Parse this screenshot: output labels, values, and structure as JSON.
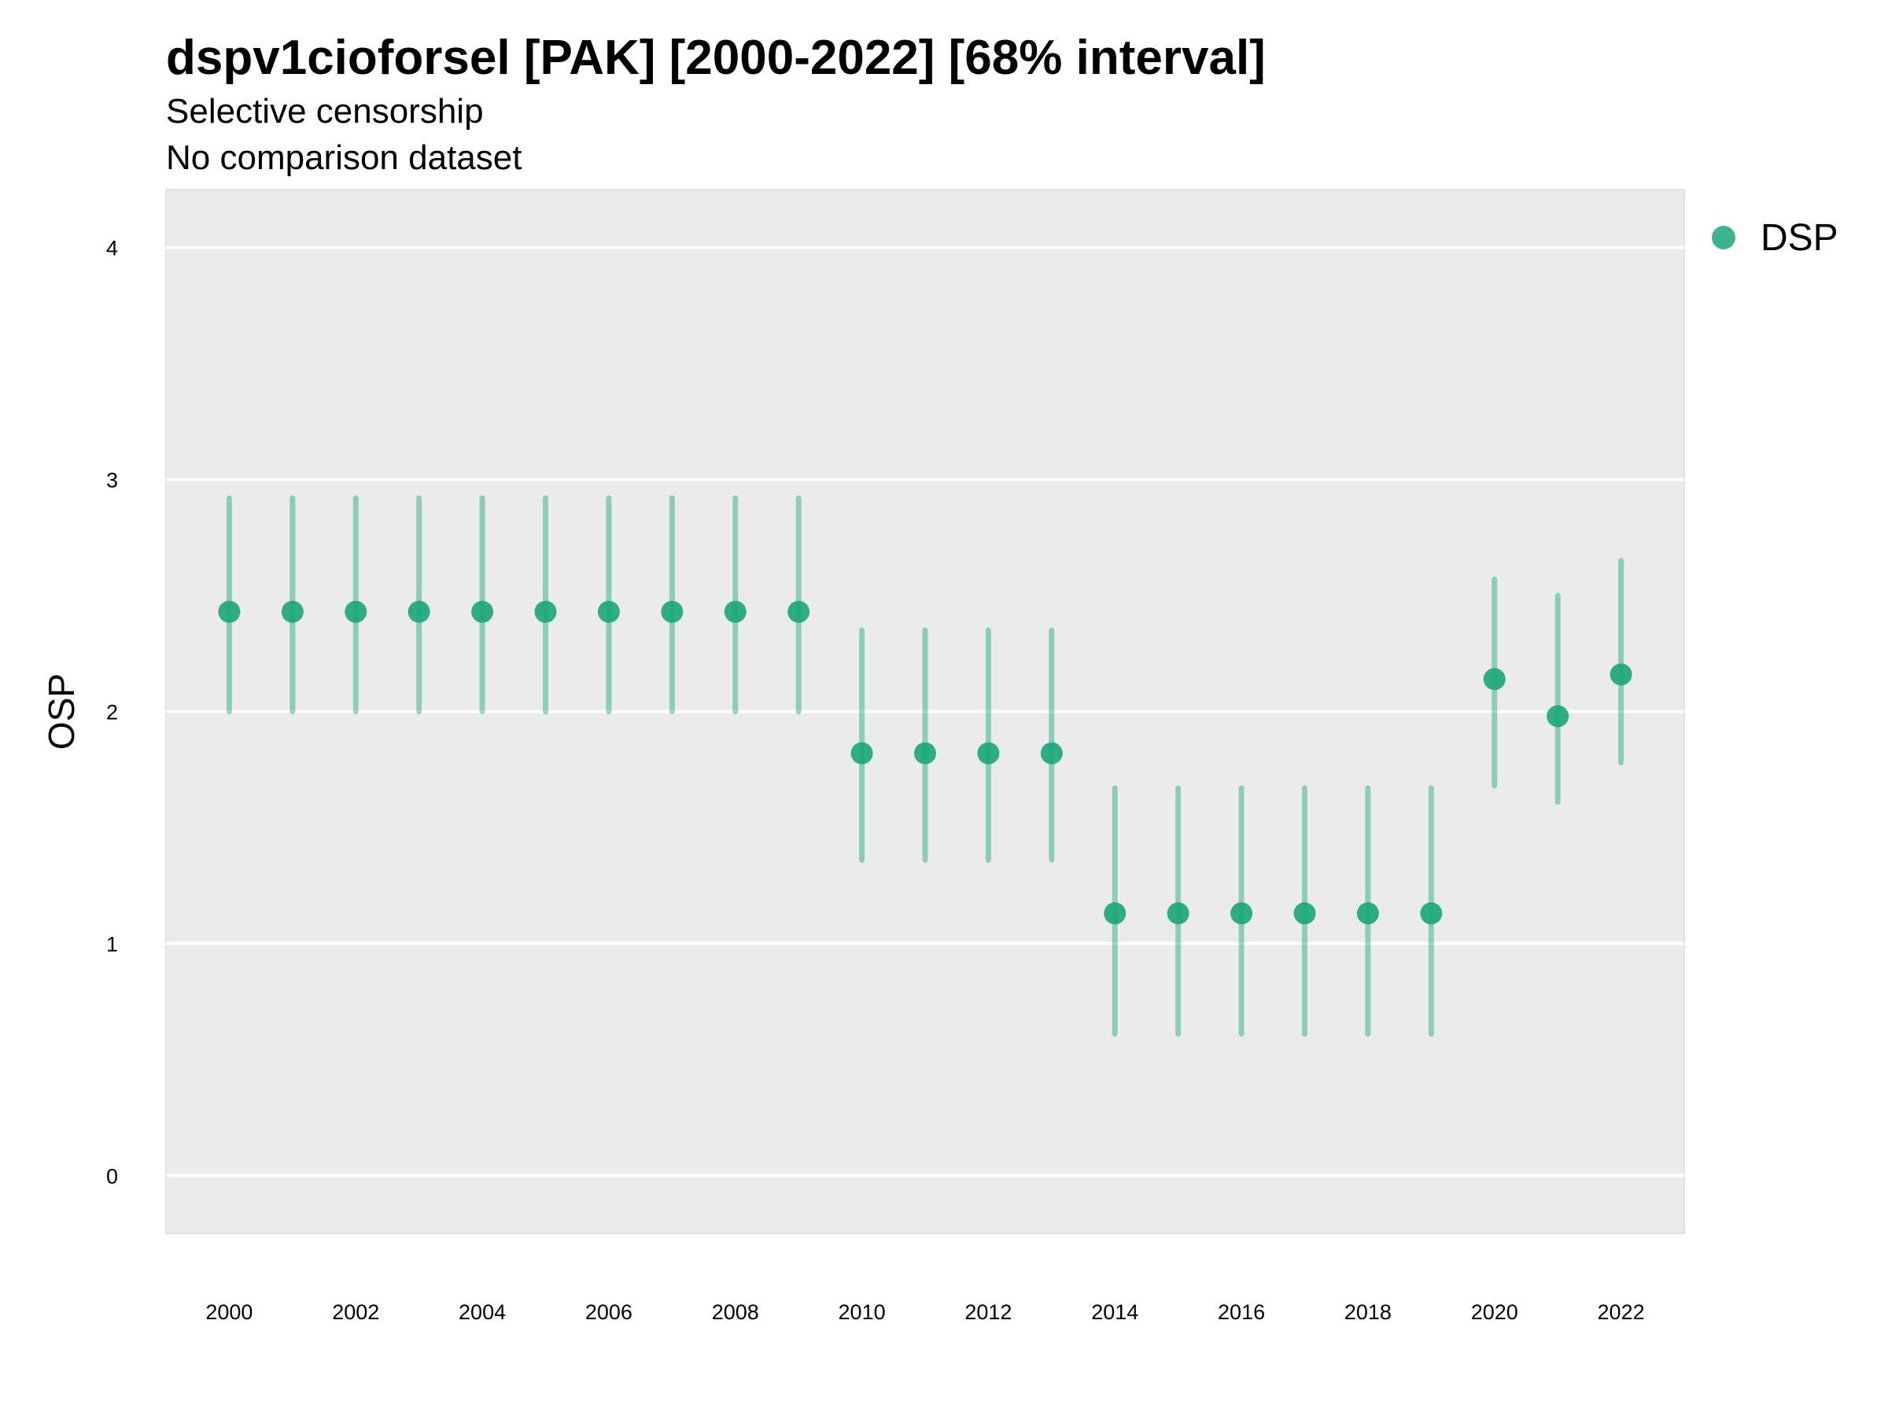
{
  "chart_data": {
    "type": "scatter",
    "title": "dspv1cioforsel [PAK] [2000-2022] [68% interval]",
    "subtitle": "Selective censorship",
    "subtitle2": "No comparison dataset",
    "xlabel": "",
    "ylabel": "OSP",
    "ylim": [
      -0.25,
      4.25
    ],
    "xlim": [
      1999.0,
      2023.0
    ],
    "y_ticks": [
      "0",
      "1",
      "2",
      "3",
      "4"
    ],
    "x_ticks": [
      "2000",
      "2002",
      "2004",
      "2006",
      "2008",
      "2010",
      "2012",
      "2014",
      "2016",
      "2018",
      "2020",
      "2022"
    ],
    "grid": true,
    "legend_position": "top-right",
    "series": [
      {
        "name": "DSP",
        "color": "#1aa67a",
        "x": [
          2000,
          2001,
          2002,
          2003,
          2004,
          2005,
          2006,
          2007,
          2008,
          2009,
          2010,
          2011,
          2012,
          2013,
          2014,
          2015,
          2016,
          2017,
          2018,
          2019,
          2020,
          2021,
          2022
        ],
        "y": [
          2.43,
          2.43,
          2.43,
          2.43,
          2.43,
          2.43,
          2.43,
          2.43,
          2.43,
          2.43,
          1.82,
          1.82,
          1.82,
          1.82,
          1.13,
          1.13,
          1.13,
          1.13,
          1.13,
          1.13,
          2.14,
          1.98,
          2.16
        ],
        "lower": [
          2.0,
          2.0,
          2.0,
          2.0,
          2.0,
          2.0,
          2.0,
          2.0,
          2.0,
          2.0,
          1.36,
          1.36,
          1.36,
          1.36,
          0.61,
          0.61,
          0.61,
          0.61,
          0.61,
          0.61,
          1.68,
          1.61,
          1.78
        ],
        "upper": [
          2.92,
          2.92,
          2.92,
          2.92,
          2.92,
          2.92,
          2.92,
          2.92,
          2.92,
          2.92,
          2.35,
          2.35,
          2.35,
          2.35,
          1.67,
          1.67,
          1.67,
          1.67,
          1.67,
          1.67,
          2.57,
          2.5,
          2.65
        ]
      }
    ]
  }
}
